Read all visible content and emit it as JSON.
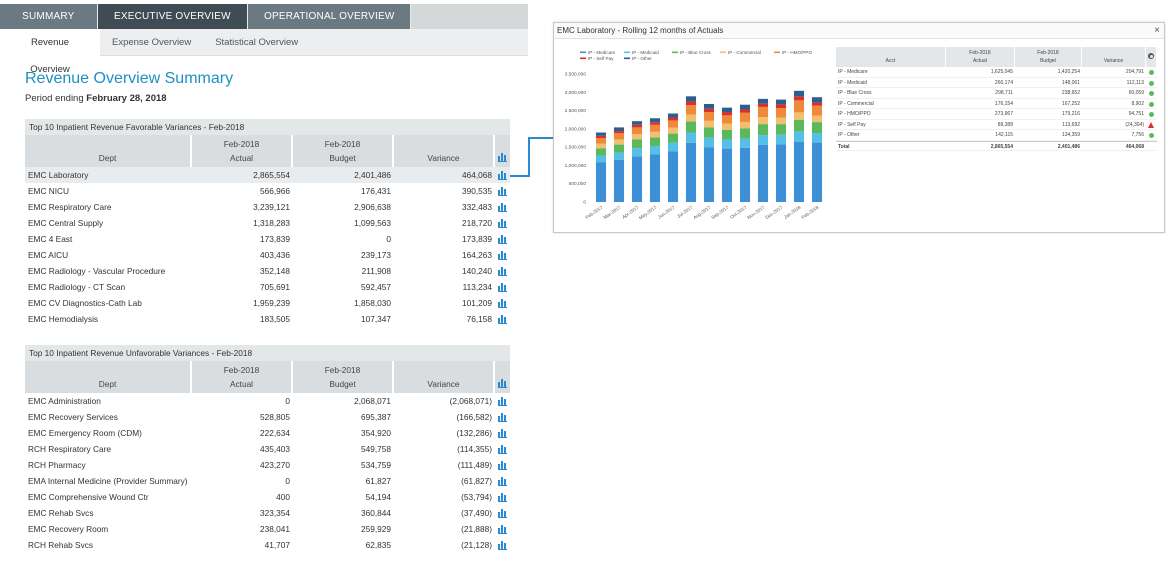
{
  "top_nav": {
    "tabs": [
      {
        "label": "SUMMARY"
      },
      {
        "label": "EXECUTIVE OVERVIEW"
      },
      {
        "label": "OPERATIONAL OVERVIEW"
      }
    ]
  },
  "sub_nav": {
    "tabs": [
      {
        "label": "Revenue Overview"
      },
      {
        "label": "Expense Overview"
      },
      {
        "label": "Statistical Overview"
      }
    ]
  },
  "page": {
    "title": "Revenue Overview Summary",
    "period_prefix": "Period ending",
    "period_date": "February 28, 2018"
  },
  "favorable": {
    "caption": "Top 10 Inpatient Revenue Favorable Variances - Feb-2018",
    "headers": {
      "dept": "Dept",
      "period": "Feb-2018",
      "actual": "Actual",
      "budget": "Budget",
      "variance": "Variance"
    },
    "rows": [
      {
        "dept": "EMC Laboratory",
        "actual": "2,865,554",
        "budget": "2,401,486",
        "variance": "464,068"
      },
      {
        "dept": "EMC NICU",
        "actual": "566,966",
        "budget": "176,431",
        "variance": "390,535"
      },
      {
        "dept": "EMC Respiratory Care",
        "actual": "3,239,121",
        "budget": "2,906,638",
        "variance": "332,483"
      },
      {
        "dept": "EMC Central Supply",
        "actual": "1,318,283",
        "budget": "1,099,563",
        "variance": "218,720"
      },
      {
        "dept": "EMC 4 East",
        "actual": "173,839",
        "budget": "0",
        "variance": "173,839"
      },
      {
        "dept": "EMC AICU",
        "actual": "403,436",
        "budget": "239,173",
        "variance": "164,263"
      },
      {
        "dept": "EMC Radiology - Vascular Procedure",
        "actual": "352,148",
        "budget": "211,908",
        "variance": "140,240"
      },
      {
        "dept": "EMC Radiology - CT Scan",
        "actual": "705,691",
        "budget": "592,457",
        "variance": "113,234"
      },
      {
        "dept": "EMC CV Diagnostics-Cath Lab",
        "actual": "1,959,239",
        "budget": "1,858,030",
        "variance": "101,209"
      },
      {
        "dept": "EMC Hemodialysis",
        "actual": "183,505",
        "budget": "107,347",
        "variance": "76,158"
      }
    ]
  },
  "unfavorable": {
    "caption": "Top 10 Inpatient Revenue Unfavorable Variances - Feb-2018",
    "headers": {
      "dept": "Dept",
      "period": "Feb-2018",
      "actual": "Actual",
      "budget": "Budget",
      "variance": "Variance"
    },
    "rows": [
      {
        "dept": "EMC Administration",
        "actual": "0",
        "budget": "2,068,071",
        "variance": "(2,068,071)"
      },
      {
        "dept": "EMC Recovery Services",
        "actual": "528,805",
        "budget": "695,387",
        "variance": "(166,582)"
      },
      {
        "dept": "EMC Emergency Room (CDM)",
        "actual": "222,634",
        "budget": "354,920",
        "variance": "(132,286)"
      },
      {
        "dept": "RCH Respiratory Care",
        "actual": "435,403",
        "budget": "549,758",
        "variance": "(114,355)"
      },
      {
        "dept": "RCH Pharmacy",
        "actual": "423,270",
        "budget": "534,759",
        "variance": "(111,489)"
      },
      {
        "dept": "EMA Internal Medicine (Provider Summary)",
        "actual": "0",
        "budget": "61,827",
        "variance": "(61,827)"
      },
      {
        "dept": "EMC Comprehensive Wound Ctr",
        "actual": "400",
        "budget": "54,194",
        "variance": "(53,794)"
      },
      {
        "dept": "EMC Rehab Svcs",
        "actual": "323,354",
        "budget": "360,844",
        "variance": "(37,490)"
      },
      {
        "dept": "EMC Recovery Room",
        "actual": "238,041",
        "budget": "259,929",
        "variance": "(21,888)"
      },
      {
        "dept": "RCH Rehab Svcs",
        "actual": "41,707",
        "budget": "62,835",
        "variance": "(21,128)"
      }
    ]
  },
  "popup": {
    "title": "EMC Laboratory - Rolling 12 months of Actuals",
    "close_glyph": "×",
    "table": {
      "headers": {
        "acct": "Acct",
        "period": "Feb-2018",
        "actual": "Actual",
        "budget": "Budget",
        "variance": "Variance"
      },
      "rows": [
        {
          "acct": "IP - Medicare",
          "actual": "1,625,045",
          "budget": "1,420,254",
          "variance": "204,791",
          "status": "ok"
        },
        {
          "acct": "IP - Medicaid",
          "actual": "260,174",
          "budget": "148,061",
          "variance": "112,113",
          "status": "ok"
        },
        {
          "acct": "IP - Blue Cross",
          "actual": "298,711",
          "budget": "238,652",
          "variance": "60,059",
          "status": "ok"
        },
        {
          "acct": "IP - Commercial",
          "actual": "176,154",
          "budget": "167,252",
          "variance": "8,902",
          "status": "ok"
        },
        {
          "acct": "IP - HMO/PPO",
          "actual": "273,967",
          "budget": "179,216",
          "variance": "94,751",
          "status": "ok"
        },
        {
          "acct": "IP - Self Pay",
          "actual": "89,388",
          "budget": "113,692",
          "variance": "(24,304)",
          "status": "warn"
        },
        {
          "acct": "IP - Other",
          "actual": "142,115",
          "budget": "134,359",
          "variance": "7,756",
          "status": "ok"
        }
      ],
      "total": {
        "acct": "Total",
        "actual": "2,865,554",
        "budget": "2,401,486",
        "variance": "464,068"
      }
    }
  },
  "chart_data": {
    "type": "bar",
    "stacked": true,
    "title": "EMC Laboratory - Rolling 12 months of Actuals",
    "categories": [
      "Feb-2017",
      "Mar-2017",
      "Apr-2017",
      "May-2017",
      "Jun-2017",
      "Jul-2017",
      "Aug-2017",
      "Sep-2017",
      "Oct-2017",
      "Nov-2017",
      "Dec-2017",
      "Jan-2018",
      "Feb-2018"
    ],
    "ylim": [
      0,
      3500000
    ],
    "yticks": [
      "0",
      "500,000",
      "1,000,000",
      "1,500,000",
      "2,000,000",
      "2,500,000",
      "3,000,000",
      "3,500,000"
    ],
    "legend_position": "top-left",
    "series": [
      {
        "name": "IP - Medicare",
        "color": "#3d8fd6",
        "values": [
          1080000,
          1150000,
          1250000,
          1300000,
          1380000,
          1620000,
          1500000,
          1460000,
          1480000,
          1560000,
          1580000,
          1640000,
          1625045
        ]
      },
      {
        "name": "IP - Medicaid",
        "color": "#55bfe8",
        "values": [
          190000,
          200000,
          220000,
          230000,
          240000,
          280000,
          260000,
          250000,
          250000,
          270000,
          260000,
          290000,
          260174
        ]
      },
      {
        "name": "IP - Blue Cross",
        "color": "#5cb85c",
        "values": [
          200000,
          220000,
          240000,
          240000,
          250000,
          300000,
          280000,
          260000,
          280000,
          300000,
          290000,
          320000,
          298711
        ]
      },
      {
        "name": "IP - Commercial",
        "color": "#f0c070",
        "values": [
          130000,
          140000,
          150000,
          150000,
          160000,
          190000,
          180000,
          170000,
          180000,
          190000,
          180000,
          200000,
          176154
        ]
      },
      {
        "name": "IP - HMO/PPO",
        "color": "#f0893a",
        "values": [
          150000,
          170000,
          180000,
          190000,
          200000,
          260000,
          240000,
          230000,
          250000,
          280000,
          260000,
          330000,
          273967
        ]
      },
      {
        "name": "IP - Self Pay",
        "color": "#d9302c",
        "values": [
          60000,
          60000,
          70000,
          70000,
          80000,
          100000,
          90000,
          90000,
          90000,
          90000,
          100000,
          110000,
          89388
        ]
      },
      {
        "name": "IP - Other",
        "color": "#2b5f8e",
        "values": [
          90000,
          100000,
          100000,
          110000,
          110000,
          140000,
          130000,
          120000,
          130000,
          130000,
          130000,
          150000,
          142115
        ]
      }
    ]
  }
}
